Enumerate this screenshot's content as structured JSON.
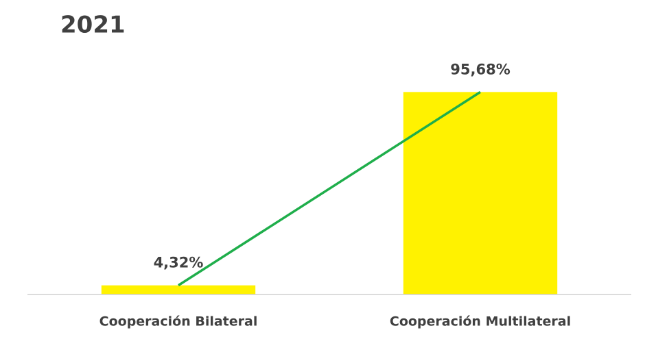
{
  "chart_data": {
    "type": "bar",
    "title": "2021",
    "categories": [
      "Cooperación Bilateral",
      "Cooperación Multilateral"
    ],
    "values": [
      4.32,
      95.68
    ],
    "value_labels": [
      "4,32%",
      "95,68%"
    ],
    "color": "#fff200",
    "line_color": "#1fae4b",
    "ylim": [
      0,
      100
    ],
    "yticks": [],
    "grid": false
  }
}
